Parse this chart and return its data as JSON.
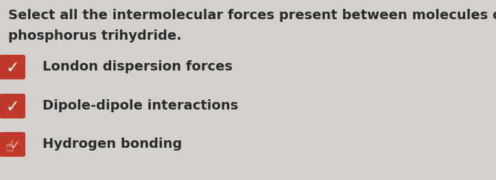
{
  "background_color": "#d4d0cb",
  "question_line1": "Select all the intermolecular forces present between molecules of",
  "question_line2": "phosphorus trihydride.",
  "options": [
    {
      "text": "London dispersion forces",
      "cursor": false
    },
    {
      "text": "Dipole-dipole interactions",
      "cursor": false
    },
    {
      "text": "Hydrogen bonding",
      "cursor": true
    }
  ],
  "text_color": "#2a2a2a",
  "checkbox_color": "#c0392b",
  "check_color": "#ffffff",
  "question_fontsize": 14.0,
  "option_fontsize": 14.0,
  "figsize": [
    7.23,
    2.63
  ],
  "dpi": 100
}
